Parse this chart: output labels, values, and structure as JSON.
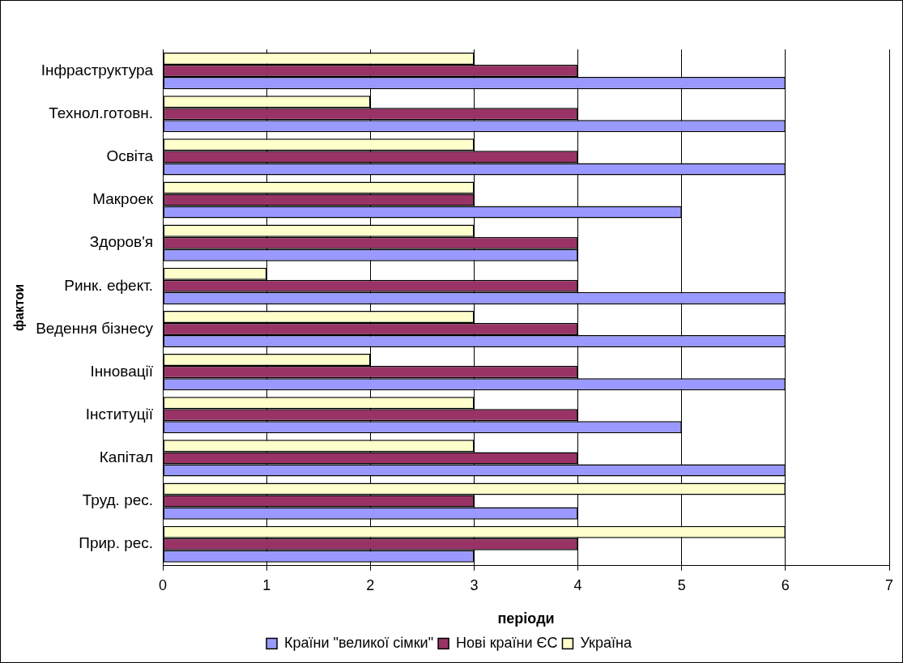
{
  "chart_data": {
    "type": "bar",
    "orientation": "horizontal",
    "xlabel": "періоди",
    "ylabel": "фактои",
    "categories": [
      "Інфраструктура",
      "Технол.готовн.",
      "Освіта",
      "Макроек",
      "Здоров'я",
      "Ринк. ефект.",
      "Ведення бізнесу",
      "Інновації",
      "Інституції",
      "Капітал",
      "Труд. рес.",
      "Прир. рес."
    ],
    "series": [
      {
        "name": "Країни \"великої сімки\"",
        "color": "#9999ff",
        "values": [
          6,
          6,
          6,
          5,
          4,
          6,
          6,
          6,
          5,
          6,
          4,
          3
        ]
      },
      {
        "name": "Нові країни ЄС",
        "color": "#993366",
        "values": [
          4,
          4,
          4,
          3,
          4,
          4,
          4,
          4,
          4,
          4,
          3,
          4
        ]
      },
      {
        "name": "Україна",
        "color": "#ffffcc",
        "values": [
          3,
          2,
          3,
          3,
          3,
          1,
          3,
          2,
          3,
          3,
          6,
          6
        ]
      }
    ],
    "xlim": [
      0,
      7
    ],
    "xticks": [
      0,
      1,
      2,
      3,
      4,
      5,
      6,
      7
    ],
    "grid": "x",
    "legend": "bottom"
  }
}
